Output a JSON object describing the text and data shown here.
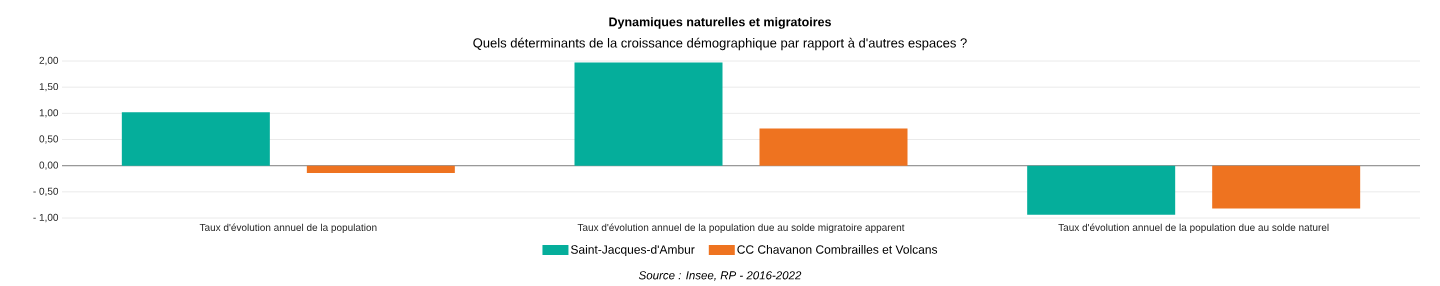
{
  "chart_data": {
    "type": "bar",
    "title": "Dynamiques naturelles et migratoires",
    "subtitle": "Quels déterminants de la croissance démographique par rapport à d'autres espaces ?",
    "categories": [
      "Taux d'évolution annuel de la population",
      "Taux d'évolution annuel de la population due au solde migratoire apparent",
      "Taux d'évolution annuel de la population due au solde naturel"
    ],
    "series": [
      {
        "name": "Saint-Jacques-d'Ambur",
        "color": "#05ae9b",
        "values": [
          1.02,
          1.97,
          -0.94
        ]
      },
      {
        "name": "CC Chavanon Combrailles et Volcans",
        "color": "#ee7320",
        "values": [
          -0.14,
          0.71,
          -0.82
        ]
      }
    ],
    "ylim": [
      -1,
      2
    ],
    "yticks": [
      {
        "value": -1,
        "label": "- 1,00"
      },
      {
        "value": -0.5,
        "label": "- 0,50"
      },
      {
        "value": 0,
        "label": "0,00"
      },
      {
        "value": 0.5,
        "label": "0,50"
      },
      {
        "value": 1,
        "label": "1,00"
      },
      {
        "value": 1.5,
        "label": "1,50"
      },
      {
        "value": 2,
        "label": "2,00"
      }
    ],
    "grid": "y",
    "legend": "bottom",
    "annotations": [
      "Source : Insee, RP - 2016-2022"
    ]
  }
}
